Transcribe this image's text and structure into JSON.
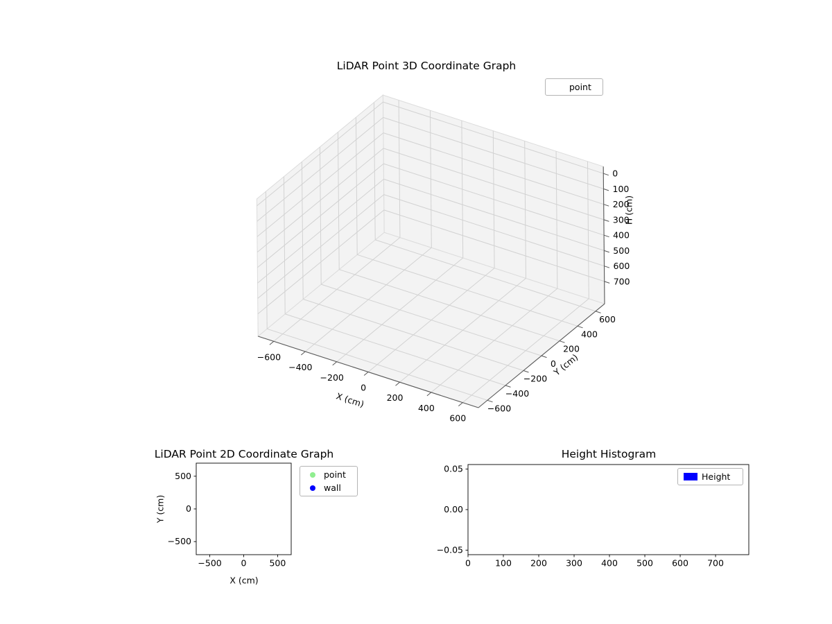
{
  "figure": {
    "background": "#ffffff"
  },
  "chart_data": [
    {
      "type": "scatter3d",
      "title": "LiDAR Point 3D Coordinate Graph",
      "xlabel": "X (cm)",
      "ylabel": "Y (cm)",
      "zlabel": "H (cm)",
      "xlim": [
        -700,
        700
      ],
      "ylim": [
        -700,
        700
      ],
      "zlim": [
        -45,
        845
      ],
      "z_axis_inverted": true,
      "grid": true,
      "pane_color": "#f3f3f3",
      "grid_color": "#d2d2d2",
      "xticks": {
        "values": [
          -600,
          -400,
          -200,
          0,
          200,
          400,
          600
        ],
        "labels": [
          "−600",
          "−400",
          "−200",
          "0",
          "200",
          "400",
          "600"
        ]
      },
      "yticks": {
        "values": [
          -600,
          -400,
          -200,
          0,
          200,
          400,
          600
        ],
        "labels": [
          "−600",
          "−400",
          "−200",
          "0",
          "200",
          "400",
          "600"
        ]
      },
      "zticks": {
        "values": [
          0,
          100,
          200,
          300,
          400,
          500,
          600,
          700
        ],
        "labels": [
          "0",
          "100",
          "200",
          "300",
          "400",
          "500",
          "600",
          "700"
        ]
      },
      "legend": {
        "location": "upper right",
        "entries": [
          {
            "label": "point",
            "handle": "none",
            "color": ""
          }
        ]
      },
      "series": [
        {
          "name": "point",
          "color": "#90ee90",
          "points": []
        }
      ]
    },
    {
      "type": "scatter",
      "title": "LiDAR Point 2D Coordinate Graph",
      "xlabel": "X (cm)",
      "ylabel": "Y (cm)",
      "xlim": [
        -700,
        700
      ],
      "ylim": [
        -700,
        700
      ],
      "grid": false,
      "xticks": {
        "values": [
          -500,
          0,
          500
        ],
        "labels": [
          "−500",
          "0",
          "500"
        ]
      },
      "yticks": {
        "values": [
          -500,
          0,
          500
        ],
        "labels": [
          "−500",
          "0",
          "500"
        ]
      },
      "legend": {
        "location": "outside right",
        "entries": [
          {
            "label": "point",
            "handle": "dot",
            "color": "#90ee90"
          },
          {
            "label": "wall",
            "handle": "dot",
            "color": "#0000ff"
          }
        ]
      },
      "series": [
        {
          "name": "point",
          "color": "#90ee90",
          "points": []
        },
        {
          "name": "wall",
          "color": "#0000ff",
          "points": []
        }
      ]
    },
    {
      "type": "bar",
      "title": "Height Histogram",
      "xlabel": "",
      "ylabel": "",
      "xlim": [
        0,
        794
      ],
      "ylim": [
        -0.0555,
        0.0555
      ],
      "grid": false,
      "xticks": {
        "values": [
          0,
          100,
          200,
          300,
          400,
          500,
          600,
          700
        ],
        "labels": [
          "0",
          "100",
          "200",
          "300",
          "400",
          "500",
          "600",
          "700"
        ]
      },
      "yticks": {
        "values": [
          -0.05,
          0,
          0.05
        ],
        "labels": [
          "−0.05",
          "0.00",
          "0.05"
        ]
      },
      "legend": {
        "location": "upper right",
        "entries": [
          {
            "label": "Height",
            "handle": "rect",
            "color": "#0000ff"
          }
        ]
      },
      "categories": [],
      "values": []
    }
  ]
}
